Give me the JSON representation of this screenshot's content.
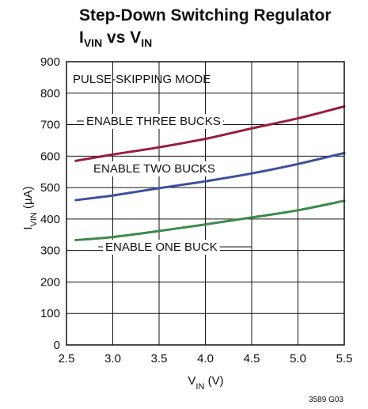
{
  "chart_data": {
    "type": "line",
    "title_line1": "Step-Down Switching Regulator",
    "title_line2": {
      "main": "I",
      "sub": "VIN",
      "mid": " vs V",
      "sub2": "IN"
    },
    "xlabel": {
      "main": "V",
      "sub": "IN",
      "rest": " (V)"
    },
    "ylabel": {
      "main": "I",
      "sub": "VIN",
      "rest": " (µA)"
    },
    "xlim": [
      2.5,
      5.5
    ],
    "ylim": [
      0,
      900
    ],
    "xticks": [
      "2.5",
      "3.0",
      "3.5",
      "4.0",
      "4.5",
      "5.0",
      "5.5"
    ],
    "yticks": [
      "0",
      "100",
      "200",
      "300",
      "400",
      "500",
      "600",
      "700",
      "800",
      "900"
    ],
    "grid": true,
    "annotation": "PULSE-SKIPPING MODE",
    "figure_id": "3589 G03",
    "series": [
      {
        "name": "ENABLE THREE BUCKS",
        "color": "#9b1b3c",
        "x": [
          2.6,
          3.0,
          3.5,
          4.0,
          4.5,
          5.0,
          5.5
        ],
        "y": [
          585,
          605,
          628,
          655,
          688,
          720,
          758
        ]
      },
      {
        "name": "ENABLE TWO BUCKS",
        "color": "#3d4f9c",
        "x": [
          2.6,
          3.0,
          3.5,
          4.0,
          4.5,
          5.0,
          5.5
        ],
        "y": [
          460,
          475,
          498,
          520,
          545,
          575,
          610
        ]
      },
      {
        "name": "ENABLE ONE BUCK",
        "color": "#3b8a4a",
        "x": [
          2.6,
          3.0,
          3.5,
          4.0,
          4.5,
          5.0,
          5.5
        ],
        "y": [
          333,
          343,
          362,
          383,
          405,
          428,
          458
        ]
      }
    ]
  }
}
